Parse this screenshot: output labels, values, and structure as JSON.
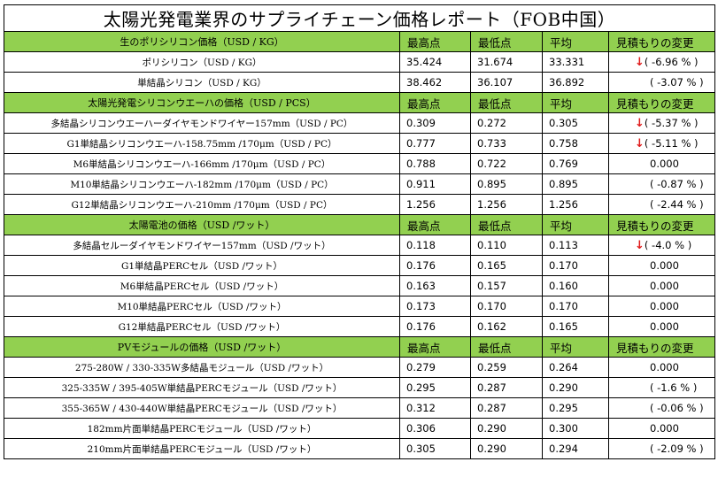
{
  "title": "太陽光発電業界のサプライチェーン価格レポート（FOB中国）",
  "sections": [
    {
      "label": "生のポリシリコン価格（USD / KG）",
      "headers": [
        "最高点",
        "最低点",
        "平均",
        "見積もりの変更"
      ],
      "rows": [
        {
          "name": "ポリシリコン（USD / KG）",
          "high": "35.424",
          "low": "31.674",
          "avg": "33.331",
          "arrow": "↓",
          "change": "( -6.96 % )"
        },
        {
          "name": "単結晶シリコン（USD / KG）",
          "high": "38.462",
          "low": "36.107",
          "avg": "36.892",
          "arrow": "",
          "change": "( -3.07 % )"
        }
      ]
    },
    {
      "label": "太陽光発電シリコンウエーハの価格（USD / PCS）",
      "headers": [
        "最高点",
        "最低点",
        "平均",
        "見積もりの変更"
      ],
      "rows": [
        {
          "name": "多結晶シリコンウエーハーダイヤモンドワイヤー157mm（USD / PC）",
          "high": "0.309",
          "low": "0.272",
          "avg": "0.305",
          "arrow": "↓",
          "change": "( -5.37 % )"
        },
        {
          "name": "G1単結晶シリコンウエーハ-158.75mm /170μm（USD / PC）",
          "high": "0.777",
          "low": "0.733",
          "avg": "0.758",
          "arrow": "↓",
          "change": "( -5.11 % )"
        },
        {
          "name": "M6単結晶シリコンウエーハ-166mm /170μm（USD / PC）",
          "high": "0.788",
          "low": "0.722",
          "avg": "0.769",
          "arrow": "",
          "change": "0.000"
        },
        {
          "name": "M10単結晶シリコンウエーハ-182mm /170μm（USD / PC）",
          "high": "0.911",
          "low": "0.895",
          "avg": "0.895",
          "arrow": "",
          "change": "( -0.87 % )"
        },
        {
          "name": "G12単結晶シリコンウエーハ-210mm /170μm（USD / PC）",
          "high": "1.256",
          "low": "1.256",
          "avg": "1.256",
          "arrow": "",
          "change": "( -2.44 % )"
        }
      ]
    },
    {
      "label": "太陽電池の価格（USD /ワット）",
      "headers": [
        "最高点",
        "最低点",
        "平均",
        "見積もりの変更"
      ],
      "rows": [
        {
          "name": "多結晶セルーダイヤモンドワイヤー157mm（USD /ワット）",
          "high": "0.118",
          "low": "0.110",
          "avg": "0.113",
          "arrow": "↓",
          "change": "( -4.0 % )"
        },
        {
          "name": "G1単結晶PERCセル（USD /ワット）",
          "high": "0.176",
          "low": "0.165",
          "avg": "0.170",
          "arrow": "",
          "change": "0.000"
        },
        {
          "name": "M6単結晶PERCセル（USD /ワット）",
          "high": "0.163",
          "low": "0.157",
          "avg": "0.160",
          "arrow": "",
          "change": "0.000"
        },
        {
          "name": "M10単結晶PERCセル（USD /ワット）",
          "high": "0.173",
          "low": "0.170",
          "avg": "0.170",
          "arrow": "",
          "change": "0.000"
        },
        {
          "name": "G12単結晶PERCセル（USD /ワット）",
          "high": "0.176",
          "low": "0.162",
          "avg": "0.165",
          "arrow": "",
          "change": "0.000"
        }
      ]
    },
    {
      "label": "PVモジュールの価格（USD /ワット）",
      "headers": [
        "最高点",
        "最低点",
        "平均",
        "見積もりの変更"
      ],
      "rows": [
        {
          "name": "275-280W / 330-335W多結晶モジュール（USD /ワット）",
          "high": "0.279",
          "low": "0.259",
          "avg": "0.264",
          "arrow": "",
          "change": "0.000"
        },
        {
          "name": "325-335W / 395-405W単結晶PERCモジュール（USD /ワット）",
          "high": "0.295",
          "low": "0.287",
          "avg": "0.290",
          "arrow": "",
          "change": "( -1.6 % )"
        },
        {
          "name": "355-365W / 430-440W単結晶PERCモジュール（USD /ワット）",
          "high": "0.312",
          "low": "0.287",
          "avg": "0.295",
          "arrow": "",
          "change": "( -0.06 % )"
        },
        {
          "name": "182mm片面単結晶PERCモジュール（USD /ワット）",
          "high": "0.306",
          "low": "0.290",
          "avg": "0.300",
          "arrow": "",
          "change": "0.000"
        },
        {
          "name": "210mm片面単結晶PERCモジュール（USD /ワット）",
          "high": "0.305",
          "low": "0.290",
          "avg": "0.294",
          "arrow": "",
          "change": "( -2.09 % )"
        }
      ]
    }
  ]
}
